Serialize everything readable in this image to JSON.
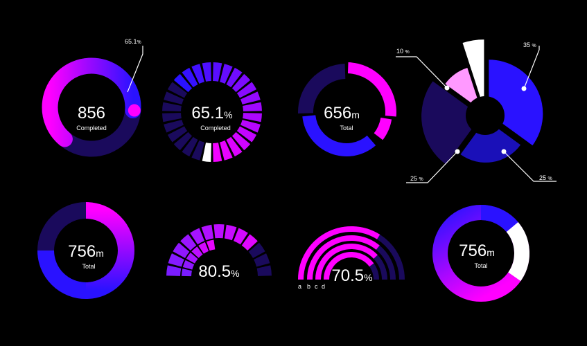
{
  "colors": {
    "magenta": "#ff00ff",
    "blue": "#2a12ff",
    "navy": "#1a0a5c",
    "purple": "#7a1cff",
    "pink": "#ff99ff",
    "white": "#ffffff",
    "background": "#000000"
  },
  "chart_data": [
    {
      "type": "pie",
      "id": "progress-ring",
      "values": [
        65.1
      ],
      "max": 100,
      "value_label": "856",
      "caption": "Completed",
      "callout_value": "65.1",
      "callout_unit": "%"
    },
    {
      "type": "pie",
      "id": "segmented-ring",
      "value": 65.1,
      "value_text": "65.1",
      "unit": "%",
      "caption": "Completed",
      "segments": 28,
      "highlight_segment": 14
    },
    {
      "type": "pie",
      "id": "multi-arc-ring",
      "value_text": "656",
      "unit": "m",
      "caption": "Total",
      "values": [
        27,
        9,
        2,
        36,
        26
      ]
    },
    {
      "type": "pie",
      "id": "exploded-pie",
      "values": [
        35,
        25,
        25,
        10,
        5
      ],
      "slice_labels": [
        {
          "value": "35",
          "unit": "%"
        },
        {
          "value": "25",
          "unit": "%"
        },
        {
          "value": "25",
          "unit": "%"
        },
        {
          "value": "10",
          "unit": "%"
        }
      ]
    },
    {
      "type": "pie",
      "id": "ring-gradient",
      "values": [
        50,
        25,
        25
      ],
      "value_text": "756",
      "unit": "m",
      "caption": "Total"
    },
    {
      "type": "pie",
      "id": "segmented-gauge",
      "value": 80.5,
      "value_text": "80.5",
      "unit": "%",
      "segments": 26
    },
    {
      "type": "pie",
      "id": "concentric-arcs",
      "value": 70.5,
      "value_text": "70.5",
      "unit": "%",
      "series": [
        {
          "name": "a",
          "value": 68
        },
        {
          "name": "b",
          "value": 72
        },
        {
          "name": "c",
          "value": 76
        },
        {
          "name": "d",
          "value": 80
        }
      ]
    },
    {
      "type": "pie",
      "id": "ring-blue-white",
      "values": [
        70,
        17,
        13
      ],
      "value_text": "756",
      "unit": "m",
      "caption": "Total"
    }
  ]
}
